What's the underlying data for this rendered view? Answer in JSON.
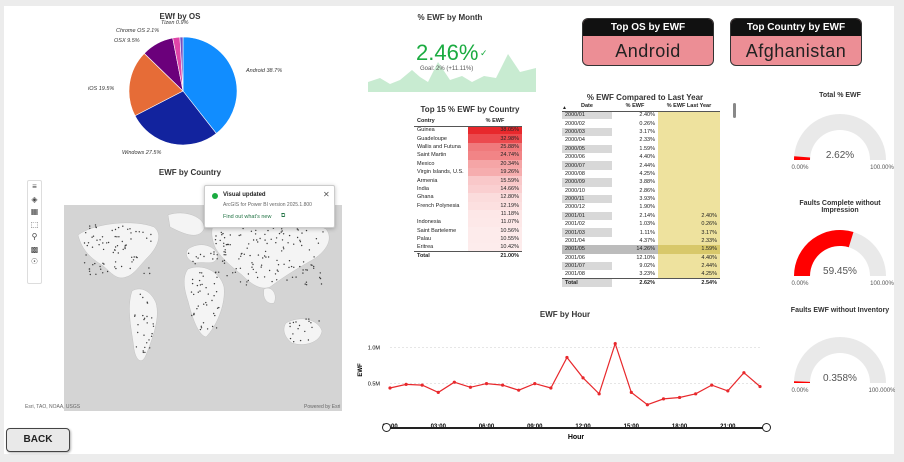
{
  "os_chart": {
    "title": "EWf by OS",
    "chart_data": {
      "type": "pie",
      "title": "EWf by OS",
      "labels": [
        "Android 38.7%",
        "Windows 27.5%",
        "iOS 19.5%",
        "OSX 9.5%",
        "Chrome OS 2.1%",
        "Tizen 0.9%"
      ],
      "values": [
        38.7,
        27.5,
        19.5,
        9.5,
        2.1,
        0.9
      ],
      "colors": [
        "#118dff",
        "#12239e",
        "#e66c37",
        "#6b007b",
        "#e044a7",
        "#744ec2"
      ]
    }
  },
  "month": {
    "title": "% EWF by Month",
    "value": "2.46%",
    "goal": "Goal: 2% (+11.11%)"
  },
  "kpi_os": {
    "label": "Top OS by EWF",
    "value": "Android"
  },
  "kpi_country": {
    "label": "Top Country by EWF",
    "value": "Afghanistan"
  },
  "top15": {
    "title": "Top 15 % EWF by Country",
    "col_country": "Contry",
    "col_ewf": "% EWF",
    "rows": [
      {
        "c": "Guinea",
        "v": "38.05%",
        "bg": "#e8282c"
      },
      {
        "c": "Guadeloupe",
        "v": "32.98%",
        "bg": "#ec4a4e"
      },
      {
        "c": "Wallis and Futuna",
        "v": "25.88%",
        "bg": "#f07a7c"
      },
      {
        "c": "Saint Martin",
        "v": "24.74%",
        "bg": "#f28486"
      },
      {
        "c": "Mexico",
        "v": "20.34%",
        "bg": "#f5a5a6"
      },
      {
        "c": "Virgin Islands, U.S.",
        "v": "19.26%",
        "bg": "#f6adae"
      },
      {
        "c": "Armenia",
        "v": "15.59%",
        "bg": "#f9c8c9"
      },
      {
        "c": "India",
        "v": "14.66%",
        "bg": "#facfd0"
      },
      {
        "c": "Ghana",
        "v": "12.80%",
        "bg": "#fbdcdc"
      },
      {
        "c": "French Polynesia",
        "v": "12.19%",
        "bg": "#fce0e0"
      },
      {
        "c": "",
        "v": "11.18%",
        "bg": "#fde7e7"
      },
      {
        "c": "Indonesia",
        "v": "11.07%",
        "bg": "#fde8e8"
      },
      {
        "c": "Saint Barteleme",
        "v": "10.56%",
        "bg": "#fdebeb"
      },
      {
        "c": "Palau",
        "v": "10.55%",
        "bg": "#fdebeb"
      },
      {
        "c": "Eritrea",
        "v": "10.42%",
        "bg": "#fdecec"
      }
    ],
    "total_label": "Total",
    "total_value": "21.00%"
  },
  "yoy": {
    "title": "% EWF Compared to Last Year",
    "col_date": "Date",
    "col_ewf": "% EWF",
    "col_last": "% EWF Last Year",
    "rows": [
      {
        "d": "2000/01",
        "e": "2.40%",
        "l": ""
      },
      {
        "d": "2000/02",
        "e": "0.26%",
        "l": ""
      },
      {
        "d": "2000/03",
        "e": "3.17%",
        "l": ""
      },
      {
        "d": "2000/04",
        "e": "2.33%",
        "l": ""
      },
      {
        "d": "2000/05",
        "e": "1.59%",
        "l": ""
      },
      {
        "d": "2000/06",
        "e": "4.40%",
        "l": ""
      },
      {
        "d": "2000/07",
        "e": "2.44%",
        "l": ""
      },
      {
        "d": "2000/08",
        "e": "4.25%",
        "l": ""
      },
      {
        "d": "2000/09",
        "e": "3.88%",
        "l": ""
      },
      {
        "d": "2000/10",
        "e": "2.86%",
        "l": ""
      },
      {
        "d": "2000/11",
        "e": "3.93%",
        "l": ""
      },
      {
        "d": "2000/12",
        "e": "1.90%",
        "l": ""
      },
      {
        "d": "2001/01",
        "e": "2.14%",
        "l": "2.40%"
      },
      {
        "d": "2001/02",
        "e": "1.03%",
        "l": "0.26%"
      },
      {
        "d": "2001/03",
        "e": "1.11%",
        "l": "3.17%"
      },
      {
        "d": "2001/04",
        "e": "4.37%",
        "l": "2.33%"
      },
      {
        "d": "2001/05",
        "e": "14.26%",
        "l": "1.59%"
      },
      {
        "d": "2001/06",
        "e": "12.10%",
        "l": "4.40%"
      },
      {
        "d": "2001/07",
        "e": "9.02%",
        "l": "2.44%"
      },
      {
        "d": "2001/08",
        "e": "3.23%",
        "l": "4.25%"
      }
    ],
    "total_label": "Total",
    "total_ewf": "2.62%",
    "total_last": "2.54%"
  },
  "country_map": {
    "title": "EWF by Country",
    "attribution": "Esri, TAO, NOAA, USGS",
    "powered": "Powered by Esri",
    "toast_title": "Visual updated",
    "toast_body": "ArcGIS for Power BI version 2025.1.800",
    "toast_link": "Find out what's new"
  },
  "hour": {
    "title": "EWF by Hour",
    "chart_data": {
      "type": "line",
      "title": "EWF by Hour",
      "xlabel": "Hour",
      "ylabel": "EWF",
      "x": [
        0,
        1,
        2,
        3,
        4,
        5,
        6,
        7,
        8,
        9,
        10,
        11,
        12,
        13,
        14,
        15,
        16,
        17,
        18,
        19,
        20,
        21,
        22,
        23
      ],
      "y": [
        440000,
        490000,
        480000,
        380000,
        520000,
        450000,
        500000,
        480000,
        410000,
        500000,
        440000,
        860000,
        580000,
        360000,
        1050000,
        380000,
        210000,
        290000,
        310000,
        360000,
        480000,
        400000,
        650000,
        460000
      ],
      "x_ticks": [
        "00:00",
        "03:00",
        "06:00",
        "09:00",
        "12:00",
        "15:00",
        "18:00",
        "21:00"
      ],
      "y_ticks": [
        "0.5M",
        "1.0M"
      ],
      "color": "#e8282c"
    }
  },
  "gauges": [
    {
      "title": "Total % EWF",
      "value": "2.62%",
      "min": "0.00%",
      "max": "100.00%",
      "fraction": 0.0262
    },
    {
      "title": "Faults Complete without Impression",
      "value": "59.45%",
      "min": "0.00%",
      "max": "100.00%",
      "fraction": 0.5945
    },
    {
      "title": "Faults EWF without Inventory",
      "value": "0.358%",
      "min": "0.00%",
      "max": "100.000%",
      "fraction": 0.00358
    }
  ],
  "back_button": "BACK",
  "colors": {
    "gauge_fill": "#ff0000",
    "gauge_track": "#e9e9e9",
    "goal_green": "#1aab40"
  }
}
